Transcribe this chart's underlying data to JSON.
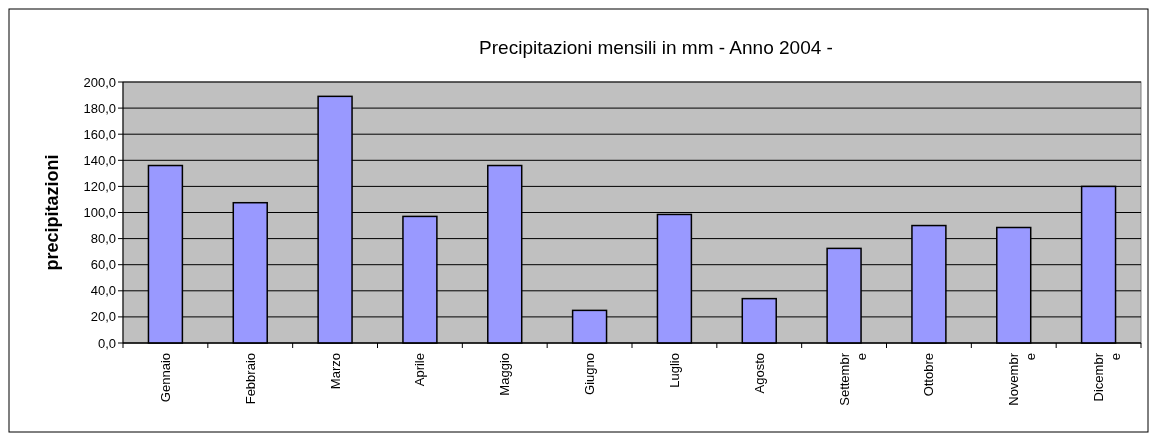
{
  "chart_data": {
    "type": "bar",
    "title": "Precipitazioni mensili in mm - Anno 2004 -",
    "ylabel": "precipitazioni",
    "categories": [
      "Gennaio",
      "Febbraio",
      "Marzo",
      "Aprile",
      "Maggio",
      "Giugno",
      "Luglio",
      "Agosto",
      "Settembre",
      "Ottobre",
      "Novembre",
      "Dicembre"
    ],
    "values": [
      136,
      107.5,
      189,
      97,
      136,
      25,
      98.5,
      34,
      72.5,
      90,
      88.5,
      120
    ],
    "color": "#9999ff",
    "ylim": [
      0,
      200
    ],
    "yticks": [
      {
        "value": 0,
        "label": "0,0"
      },
      {
        "value": 20,
        "label": "20,0"
      },
      {
        "value": 40,
        "label": "40,0"
      },
      {
        "value": 60,
        "label": "60,0"
      },
      {
        "value": 80,
        "label": "80,0"
      },
      {
        "value": 100,
        "label": "100,0"
      },
      {
        "value": 120,
        "label": "120,0"
      },
      {
        "value": 140,
        "label": "140,0"
      },
      {
        "value": 160,
        "label": "160,0"
      },
      {
        "value": 180,
        "label": "180,0"
      },
      {
        "value": 200,
        "label": "200,0"
      }
    ],
    "grid": "y"
  }
}
